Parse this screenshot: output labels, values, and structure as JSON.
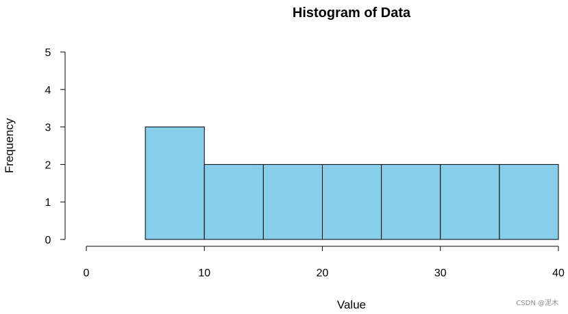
{
  "chart_data": {
    "type": "bar",
    "title": "Histogram of Data",
    "xlabel": "Value",
    "ylabel": "Frequency",
    "bins": [
      {
        "x0": 5,
        "x1": 10,
        "count": 3
      },
      {
        "x0": 10,
        "x1": 15,
        "count": 2
      },
      {
        "x0": 15,
        "x1": 20,
        "count": 2
      },
      {
        "x0": 20,
        "x1": 25,
        "count": 2
      },
      {
        "x0": 25,
        "x1": 30,
        "count": 2
      },
      {
        "x0": 30,
        "x1": 35,
        "count": 2
      },
      {
        "x0": 35,
        "x1": 40,
        "count": 2
      }
    ],
    "xlim": [
      0,
      40
    ],
    "ylim": [
      0,
      5
    ],
    "x_ticks": [
      "0",
      "10",
      "20",
      "30",
      "40"
    ],
    "y_ticks": [
      "0",
      "1",
      "2",
      "3",
      "4",
      "5"
    ],
    "bar_color": "#87CEEB",
    "grid": false
  },
  "watermark": "CSDN @泥木"
}
